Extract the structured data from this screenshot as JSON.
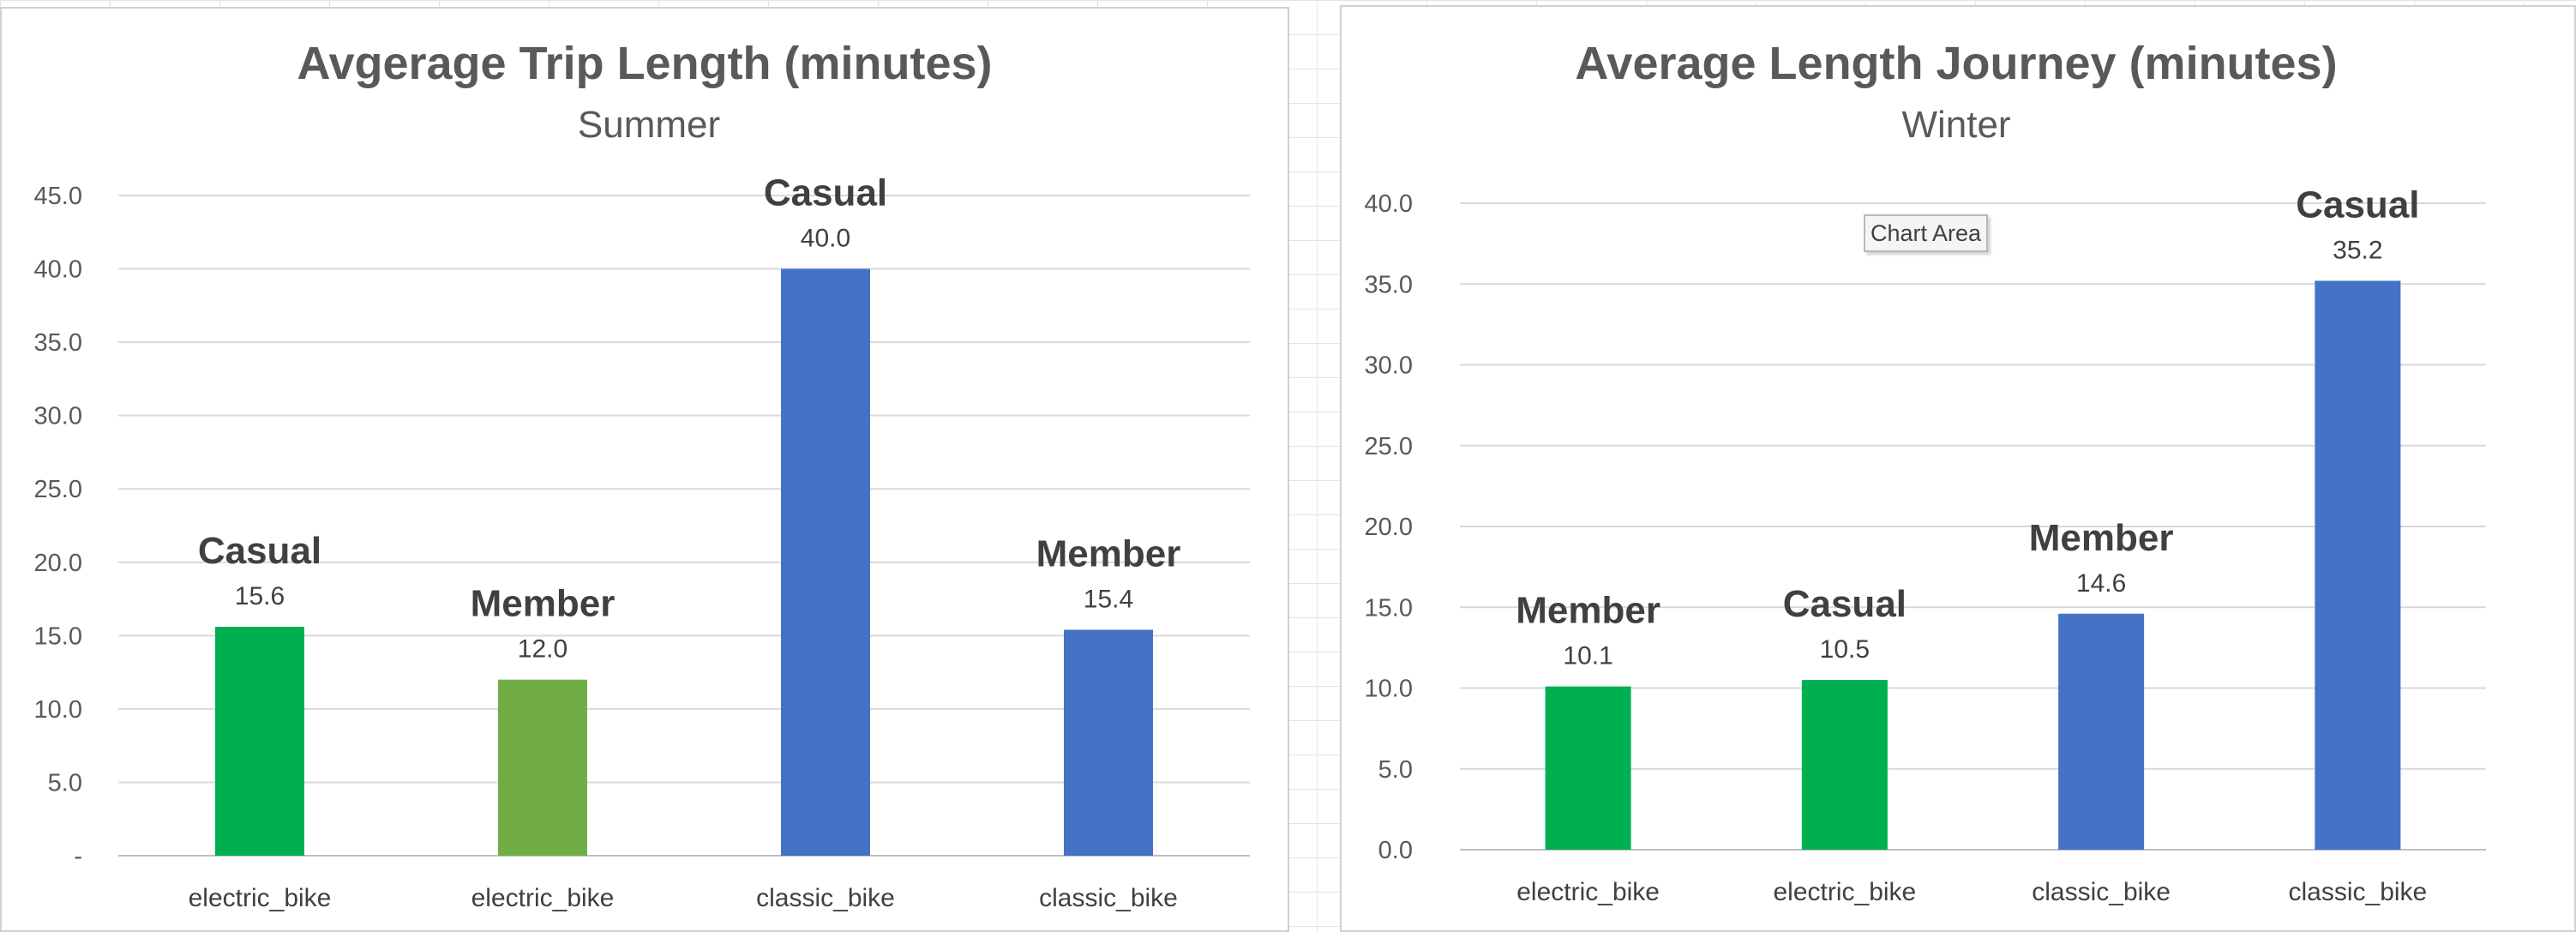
{
  "chart_data": [
    {
      "type": "bar",
      "title": "Avgerage Trip Length (minutes)",
      "subtitle": "Summer",
      "categories": [
        "electric_bike",
        "electric_bike",
        "classic_bike",
        "classic_bike"
      ],
      "values": [
        15.6,
        12.0,
        40.0,
        15.4
      ],
      "value_labels": [
        "15.6",
        "12.0",
        "40.0",
        "15.4"
      ],
      "bar_labels": [
        "Casual",
        "Member",
        "Casual",
        "Member"
      ],
      "bar_colors": [
        "#00B050",
        "#70AD47",
        "#4472C4",
        "#4472C4"
      ],
      "ylim": [
        0,
        45
      ],
      "yticks": [
        "-",
        "5.0",
        "10.0",
        "15.0",
        "20.0",
        "25.0",
        "30.0",
        "35.0",
        "40.0",
        "45.0"
      ],
      "grid": true,
      "xlabel": "",
      "ylabel": ""
    },
    {
      "type": "bar",
      "title": "Average Length Journey (minutes)",
      "subtitle": "Winter",
      "categories": [
        "electric_bike",
        "electric_bike",
        "classic_bike",
        "classic_bike"
      ],
      "values": [
        10.1,
        10.5,
        14.6,
        35.2
      ],
      "value_labels": [
        "10.1",
        "10.5",
        "14.6",
        "35.2"
      ],
      "bar_labels": [
        "Member",
        "Casual",
        "Member",
        "Casual"
      ],
      "bar_colors": [
        "#00B050",
        "#00B050",
        "#4472C4",
        "#4472C4"
      ],
      "ylim": [
        0,
        40
      ],
      "yticks": [
        "0.0",
        "5.0",
        "10.0",
        "15.0",
        "20.0",
        "25.0",
        "30.0",
        "35.0",
        "40.0"
      ],
      "grid": true,
      "xlabel": "",
      "ylabel": ""
    }
  ],
  "tooltip": {
    "text": "Chart Area"
  }
}
